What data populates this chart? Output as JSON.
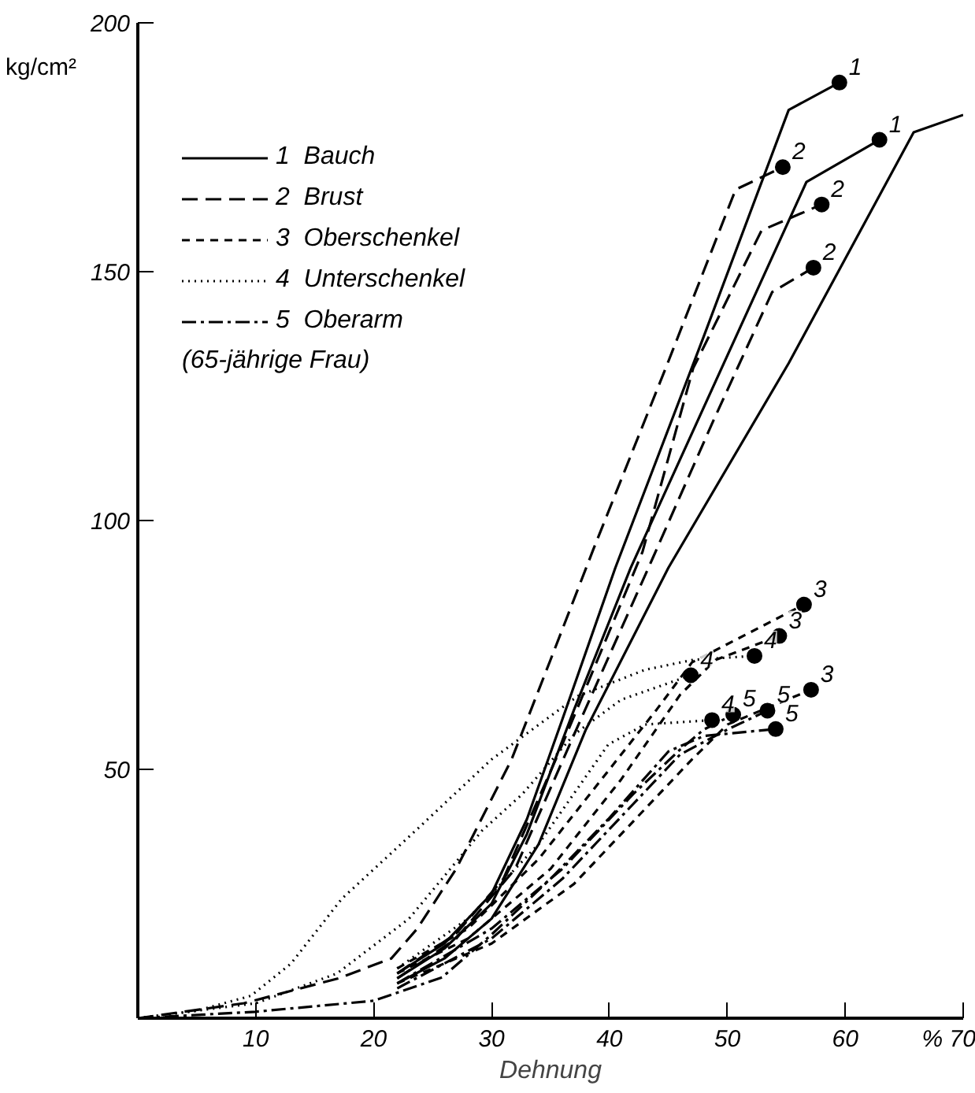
{
  "chart_data": {
    "type": "line",
    "xlabel": "Dehnung",
    "ylabel": "kg/cm²",
    "xlim": [
      0,
      70
    ],
    "ylim": [
      0,
      200
    ],
    "xticks": [
      10,
      20,
      30,
      40,
      50,
      60,
      {
        "value": 70,
        "label": "% 70"
      }
    ],
    "yticks": [
      50,
      100,
      150,
      200
    ],
    "grid": false,
    "legend": "top left",
    "series": [
      {
        "name": "1  Bauch",
        "color": "#000000",
        "line_style": "solid",
        "x": [
          22,
          26,
          30,
          33,
          36,
          40.5,
          48,
          55.2,
          59.5
        ],
        "values": [
          9,
          15,
          25,
          40,
          60,
          90.5,
          137,
          182.5,
          188
        ]
      },
      {
        "color": "#000000",
        "line_style": "solid",
        "x": [
          22,
          26,
          30,
          33,
          37,
          41.8,
          56.7,
          62.9
        ],
        "values": [
          8,
          14,
          23,
          37,
          62,
          90.5,
          168,
          176.5
        ]
      },
      {
        "color": "#000000",
        "line_style": "solid",
        "x": [
          22,
          26,
          30,
          34,
          38,
          45,
          55.2,
          65.8,
          70
        ],
        "values": [
          7,
          12,
          20,
          35,
          58,
          90.5,
          131.6,
          178,
          181.5
        ]
      },
      {
        "name": "2  Brust",
        "color": "#000000",
        "line_style": "longdash",
        "x": [
          0,
          9,
          17,
          21.5,
          23.7,
          27,
          31.7,
          35,
          38.6,
          45,
          50.7,
          54.7
        ],
        "values": [
          0,
          3,
          8,
          12,
          18,
          30,
          52,
          72,
          94,
          132,
          166.5,
          171
        ]
      },
      {
        "color": "#000000",
        "line_style": "longdash",
        "x": [
          22,
          27,
          31,
          36,
          42.8,
          47.1,
          52.9,
          58
        ],
        "values": [
          9,
          17,
          28,
          55,
          93.7,
          130.6,
          158.3,
          163.5
        ]
      },
      {
        "color": "#000000",
        "line_style": "longdash",
        "x": [
          22,
          27,
          32,
          37,
          43.7,
          48.8,
          53.8,
          57.3
        ],
        "values": [
          8,
          16,
          30,
          57,
          92.6,
          120,
          145.9,
          150.8
        ]
      },
      {
        "name": "3  Oberschenkel",
        "color": "#000000",
        "line_style": "dashed",
        "x": [
          22,
          28,
          34,
          40,
          44,
          47,
          56.5
        ],
        "values": [
          10,
          18,
          32,
          50,
          62,
          71.5,
          83.1
        ]
      },
      {
        "color": "#000000",
        "line_style": "dashed",
        "x": [
          22,
          28,
          35,
          41,
          46,
          49,
          54.4
        ],
        "values": [
          9,
          16,
          30,
          48,
          65,
          72,
          76.8
        ]
      },
      {
        "color": "#000000",
        "line_style": "dashed",
        "x": [
          22,
          30,
          37,
          43,
          47,
          50,
          57.1
        ],
        "values": [
          7,
          15,
          27,
          42,
          52,
          59,
          66
        ]
      },
      {
        "name": "4  Unterschenkel",
        "color": "#000000",
        "line_style": "dotted",
        "x": [
          0,
          5,
          9.6,
          13,
          17.3,
          23.7,
          30,
          37.3,
          43,
          47.1,
          52.3
        ],
        "values": [
          0,
          1.5,
          4.5,
          11,
          24,
          38,
          52,
          64.7,
          70,
          72,
          72.8
        ]
      },
      {
        "color": "#000000",
        "line_style": "dotted",
        "x": [
          0,
          10,
          16.9,
          23,
          29.2,
          32.6,
          37,
          41,
          46.9
        ],
        "values": [
          0,
          3,
          9,
          20,
          37.7,
          45,
          57,
          64,
          68.9
        ]
      },
      {
        "color": "#000000",
        "line_style": "dotted",
        "x": [
          22,
          28,
          34,
          39.9,
          43,
          48.7
        ],
        "values": [
          10,
          20,
          35,
          55,
          59,
          59.9
        ]
      },
      {
        "name": "5  Oberarm",
        "color": "#000000",
        "line_style": "dashdot",
        "x": [
          22,
          30,
          36,
          42,
          46,
          48,
          50.5
        ],
        "values": [
          7,
          18,
          30,
          45,
          54,
          58,
          61
        ]
      },
      {
        "color": "#000000",
        "line_style": "dashdot",
        "x": [
          22,
          30,
          36,
          42,
          46,
          50,
          53.4
        ],
        "values": [
          6,
          16,
          28,
          43,
          53,
          58,
          61.8
        ]
      },
      {
        "color": "#000000",
        "line_style": "dashdot",
        "x": [
          0,
          10,
          20,
          25.8,
          30,
          35,
          39.9,
          45,
          48,
          54.1
        ],
        "values": [
          0,
          1.3,
          3.5,
          8.2,
          16.8,
          28,
          40,
          53.6,
          56.7,
          58.1
        ]
      },
      {
        "type": "scatter",
        "marker": "circle",
        "color": "#000000",
        "x": [
          59.5,
          62.9,
          54.7,
          58,
          57.3,
          56.5,
          54.4,
          57.1,
          52.3,
          46.9,
          48.7,
          50.5,
          53.4,
          54.1
        ],
        "values": [
          188,
          176.5,
          171,
          163.5,
          150.8,
          83.1,
          76.8,
          66,
          72.8,
          68.9,
          59.9,
          61,
          61.8,
          58.1
        ]
      }
    ],
    "annotations": [
      "(65-jährige Frau)",
      {
        "text": "1",
        "x": 59.5,
        "y": 188
      },
      {
        "text": "1",
        "x": 62.9,
        "y": 176.5
      },
      {
        "text": "2",
        "x": 54.7,
        "y": 171
      },
      {
        "text": "2",
        "x": 58,
        "y": 163.5
      },
      {
        "text": "2",
        "x": 57.3,
        "y": 150.8
      },
      {
        "text": "3",
        "x": 56.5,
        "y": 83.1
      },
      {
        "text": "3",
        "x": 54.4,
        "y": 76.8
      },
      {
        "text": "3",
        "x": 57.1,
        "y": 66
      },
      {
        "text": "4",
        "x": 52.3,
        "y": 72.8
      },
      {
        "text": "4",
        "x": 46.9,
        "y": 68.9
      },
      {
        "text": "4",
        "x": 48.7,
        "y": 59.9
      },
      {
        "text": "5",
        "x": 50.5,
        "y": 61
      },
      {
        "text": "5",
        "x": 53.4,
        "y": 61.8
      },
      {
        "text": "5",
        "x": 54.1,
        "y": 58.1
      }
    ]
  }
}
